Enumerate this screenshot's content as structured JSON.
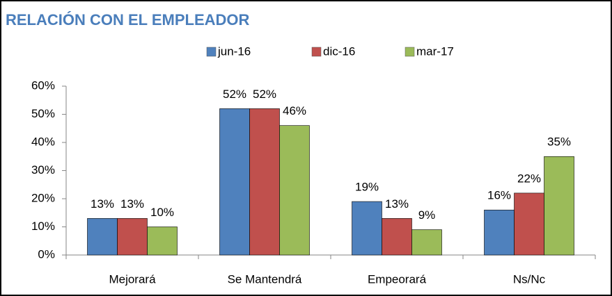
{
  "chart_data": {
    "type": "bar",
    "title": "RELACIÓN CON EL EMPLEADOR",
    "categories": [
      "Mejorará",
      "Se Mantendrá",
      "Empeorará",
      "Ns/Nc"
    ],
    "series": [
      {
        "name": "jun-16",
        "color": "#4f81bd",
        "values": [
          13,
          52,
          19,
          16
        ],
        "value_labels": [
          "13%",
          "52%",
          "19%",
          "16%"
        ]
      },
      {
        "name": "dic-16",
        "color": "#c0504d",
        "values": [
          13,
          52,
          13,
          22
        ],
        "value_labels": [
          "13%",
          "52%",
          "13%",
          "22%"
        ]
      },
      {
        "name": "mar-17",
        "color": "#9bbb59",
        "values": [
          10,
          46,
          9,
          35
        ],
        "value_labels": [
          "10%",
          "46%",
          "9%",
          "35%"
        ]
      }
    ],
    "ylim": [
      0,
      60
    ],
    "yticks": [
      {
        "value": 0,
        "label": "0%"
      },
      {
        "value": 10,
        "label": "10%"
      },
      {
        "value": 20,
        "label": "20%"
      },
      {
        "value": 30,
        "label": "30%"
      },
      {
        "value": 40,
        "label": "40%"
      },
      {
        "value": 50,
        "label": "50%"
      },
      {
        "value": 60,
        "label": "60%"
      }
    ],
    "legend": "top",
    "grid": false
  }
}
